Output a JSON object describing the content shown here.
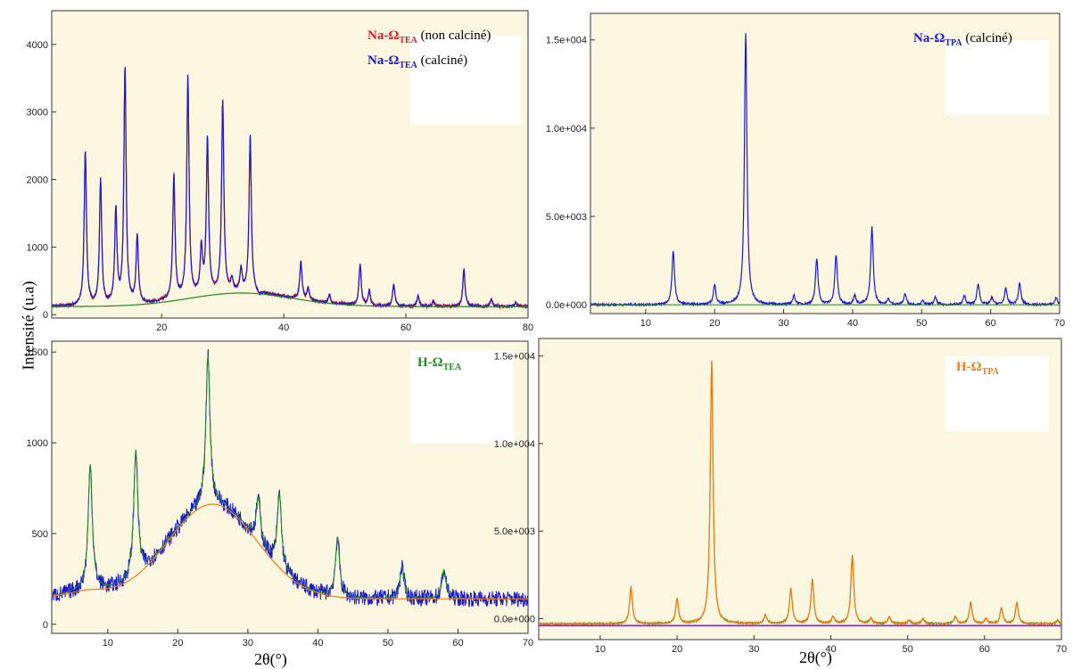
{
  "common": {
    "ylabel": "Intensité (u.a)",
    "xlabel": "2θ(°)"
  },
  "colors": {
    "red": "#e01b24",
    "blue": "#1a1ad0",
    "green": "#1f8a1f",
    "orange": "#ef7d10",
    "purple": "#7a2bbf"
  },
  "chart_data": [
    {
      "id": "p1",
      "type": "line",
      "x_range": [
        2,
        80
      ],
      "y_range": [
        -50,
        4500
      ],
      "xticks": [
        20,
        40,
        60,
        80
      ],
      "yticks": [
        0,
        1000,
        2000,
        3000,
        4000
      ],
      "legend": [
        {
          "prefix": "Na-Ω",
          "sub": "TEA",
          "suffix": " (non calciné)",
          "color": "red"
        },
        {
          "prefix": "Na-Ω",
          "sub": "TEA",
          "suffix": "  (calciné)",
          "color": "blue"
        }
      ],
      "series": [
        {
          "color": "blue"
        },
        {
          "color": "red"
        },
        {
          "color": "green"
        }
      ],
      "peaks": [
        [
          7.5,
          2430
        ],
        [
          10,
          1970
        ],
        [
          12.5,
          1530
        ],
        [
          14,
          3650
        ],
        [
          16,
          1150
        ],
        [
          20.5,
          200
        ],
        [
          22,
          2050
        ],
        [
          24.3,
          3500
        ],
        [
          26.5,
          950
        ],
        [
          27.5,
          2600
        ],
        [
          30,
          3150
        ],
        [
          31.5,
          480
        ],
        [
          33,
          650
        ],
        [
          34.5,
          2650
        ],
        [
          36,
          250
        ],
        [
          42.8,
          780
        ],
        [
          44,
          380
        ],
        [
          47.5,
          290
        ],
        [
          50,
          160
        ],
        [
          52.5,
          750
        ],
        [
          54,
          360
        ],
        [
          58,
          450
        ],
        [
          62,
          280
        ],
        [
          64.5,
          200
        ],
        [
          69.5,
          670
        ],
        [
          74,
          220
        ],
        [
          78,
          180
        ]
      ]
    },
    {
      "id": "p2",
      "type": "line",
      "x_range": [
        2,
        70
      ],
      "y_range": [
        -500,
        16500
      ],
      "xticks": [
        10,
        20,
        30,
        40,
        50,
        60,
        70
      ],
      "yticks": [
        0,
        5000,
        10000,
        15000
      ],
      "yticklabels": [
        "0.0e+000",
        "5.0e+003",
        "1.0e+004",
        "1.5e+004"
      ],
      "legend": [
        {
          "prefix": "Na-Ω",
          "sub": "TPA",
          "suffix": " (calciné)",
          "color": "blue"
        }
      ],
      "series": [
        {
          "color": "blue"
        },
        {
          "color": "green"
        }
      ],
      "peaks": [
        [
          14,
          3000
        ],
        [
          20,
          1100
        ],
        [
          24.5,
          15400
        ],
        [
          31.5,
          500
        ],
        [
          34.8,
          2600
        ],
        [
          37.6,
          2800
        ],
        [
          40.3,
          500
        ],
        [
          42.8,
          4400
        ],
        [
          45.2,
          300
        ],
        [
          47.6,
          600
        ],
        [
          50.2,
          200
        ],
        [
          52,
          400
        ],
        [
          56.2,
          500
        ],
        [
          58.2,
          1200
        ],
        [
          60.2,
          400
        ],
        [
          62.2,
          900
        ],
        [
          64.2,
          1200
        ],
        [
          69.5,
          400
        ]
      ]
    },
    {
      "id": "p3",
      "type": "line",
      "x_range": [
        2,
        70
      ],
      "y_range": [
        -50,
        1560
      ],
      "xticks": [
        10,
        20,
        30,
        40,
        50,
        60,
        70
      ],
      "yticks": [
        0,
        500,
        1000,
        1500
      ],
      "legend": [
        {
          "prefix": "H-Ω",
          "sub": "TEA",
          "suffix": "",
          "color": "green"
        }
      ],
      "series": [
        {
          "color": "blue"
        },
        {
          "color": "green"
        },
        {
          "color": "orange"
        }
      ],
      "peaks": [
        [
          7.5,
          880
        ],
        [
          14,
          960
        ],
        [
          24.3,
          1480
        ],
        [
          31.5,
          700
        ],
        [
          34.5,
          720
        ],
        [
          42.8,
          480
        ],
        [
          52,
          320
        ],
        [
          58,
          300
        ]
      ]
    },
    {
      "id": "p4",
      "type": "line",
      "x_range": [
        2,
        70
      ],
      "y_range": [
        -1200,
        16000
      ],
      "xticks": [
        10,
        20,
        30,
        40,
        50,
        60,
        70
      ],
      "yticks": [
        0,
        5000,
        10000,
        15000
      ],
      "yticklabels": [
        "0.0e+000",
        "5.0e+003",
        "1.0e+004",
        "1.5e+004"
      ],
      "legend": [
        {
          "prefix": "H-Ω",
          "sub": "TPA",
          "suffix": "",
          "color": "orange"
        }
      ],
      "series": [
        {
          "color": "orange"
        },
        {
          "color": "purple"
        },
        {
          "color": "green"
        }
      ],
      "peaks": [
        [
          14,
          2100
        ],
        [
          20,
          1400
        ],
        [
          24.5,
          15000
        ],
        [
          31.5,
          500
        ],
        [
          34.8,
          2000
        ],
        [
          37.6,
          2500
        ],
        [
          40.3,
          400
        ],
        [
          42.8,
          3900
        ],
        [
          45.2,
          300
        ],
        [
          47.6,
          400
        ],
        [
          50.2,
          200
        ],
        [
          52,
          300
        ],
        [
          56.2,
          400
        ],
        [
          58.2,
          1200
        ],
        [
          60.2,
          300
        ],
        [
          62.2,
          900
        ],
        [
          64.2,
          1200
        ],
        [
          69.5,
          200
        ]
      ]
    }
  ]
}
